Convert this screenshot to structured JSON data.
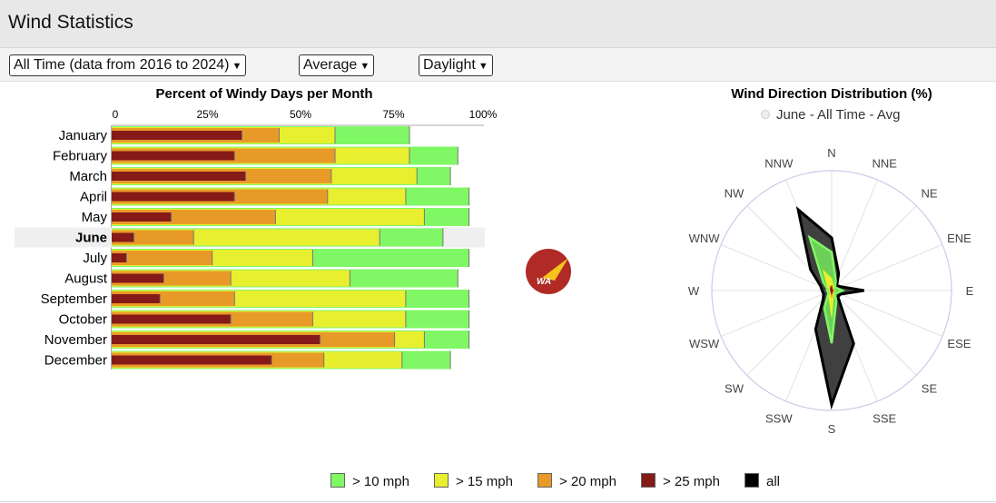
{
  "header": {
    "title": "Wind Statistics"
  },
  "filters": {
    "period": "All Time (data from 2016 to 2024)",
    "stat": "Average",
    "time": "Daylight"
  },
  "colors": {
    "gt10": "#80f764",
    "gt15": "#e8ef2e",
    "gt20": "#e89a29",
    "gt25": "#851a18",
    "all": "#000000",
    "logo": "#b02a26"
  },
  "logo": {
    "text": "WA"
  },
  "chart_data": [
    {
      "type": "bar",
      "title": "Percent of Windy Days per Month",
      "orientation": "horizontal",
      "xlim": [
        0,
        100
      ],
      "tick_labels": [
        "0",
        "25%",
        "50%",
        "75%",
        "100%"
      ],
      "categories": [
        "January",
        "February",
        "March",
        "April",
        "May",
        "June",
        "July",
        "August",
        "September",
        "October",
        "November",
        "December"
      ],
      "highlight": "June",
      "series": [
        {
          "name": "> 10 mph",
          "values": [
            80,
            93,
            91,
            96,
            96,
            89,
            96,
            93,
            96,
            96,
            96,
            91
          ]
        },
        {
          "name": "> 15 mph",
          "values": [
            60,
            80,
            82,
            79,
            84,
            72,
            54,
            64,
            79,
            79,
            84,
            78
          ]
        },
        {
          "name": "> 20 mph",
          "values": [
            45,
            60,
            59,
            58,
            44,
            22,
            27,
            32,
            33,
            54,
            76,
            57
          ]
        },
        {
          "name": "> 25 mph",
          "values": [
            35,
            33,
            36,
            33,
            16,
            6,
            4,
            14,
            13,
            32,
            56,
            43
          ]
        }
      ]
    },
    {
      "type": "radar",
      "title": "Wind Direction Distribution (%)",
      "legend_label": "June - All Time - Avg",
      "directions": [
        "N",
        "NNE",
        "NE",
        "ENE",
        "E",
        "ESE",
        "SE",
        "SSE",
        "S",
        "SSW",
        "SW",
        "WSW",
        "W",
        "WNW",
        "NW",
        "NNW"
      ],
      "rmax": 30,
      "series": [
        {
          "name": "all",
          "values": [
            13.2,
            4.6,
            1.8,
            2.5,
            8.1,
            2.4,
            2.2,
            14.4,
            28.6,
            10.5,
            3,
            2.2,
            2.4,
            3,
            7.5,
            21.9
          ]
        },
        {
          "name": "> 10 mph",
          "values": [
            9.6,
            2.7,
            1.2,
            1.5,
            2.7,
            1.5,
            1.2,
            3,
            13.2,
            4.8,
            1.2,
            1,
            1.2,
            1.2,
            3,
            14.4
          ]
        },
        {
          "name": "> 15 mph",
          "values": [
            3,
            1.2,
            0.6,
            0.6,
            0.9,
            0.6,
            0.6,
            1.2,
            6.6,
            1.8,
            0.6,
            0.5,
            0.6,
            0.6,
            1.5,
            5.4
          ]
        },
        {
          "name": "> 20 mph",
          "values": [
            1.2,
            0.5,
            0.3,
            0.3,
            0.5,
            0.3,
            0.3,
            0.6,
            1.8,
            0.6,
            0.3,
            0.3,
            0.3,
            0.3,
            0.5,
            1.2
          ]
        },
        {
          "name": "> 25 mph",
          "values": [
            0.9,
            0.2,
            0.2,
            0.2,
            0.3,
            0.2,
            0.2,
            0.3,
            0.6,
            0.3,
            0.2,
            0.2,
            0.2,
            0.2,
            0.3,
            0.6
          ]
        }
      ]
    }
  ],
  "legend": [
    "> 10 mph",
    "> 15 mph",
    "> 20 mph",
    "> 25 mph",
    "all"
  ]
}
